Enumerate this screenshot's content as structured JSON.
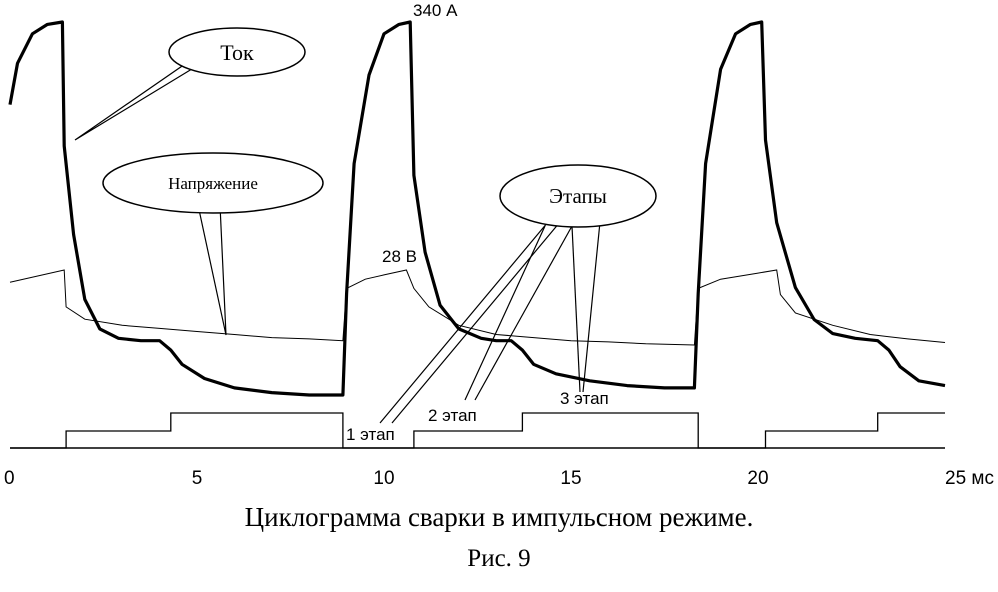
{
  "chart_data": {
    "type": "line",
    "xlabel_unit": "мс",
    "xlim": [
      0,
      25
    ],
    "x_ticks": [
      0,
      5,
      10,
      15,
      20,
      25
    ],
    "x_tick_labels": [
      "0",
      "5",
      "10",
      "15",
      "20",
      "25 мс"
    ],
    "grid": false,
    "series": [
      {
        "name": "Ток",
        "x": [
          0,
          0.2,
          0.6,
          1.0,
          1.4,
          1.45,
          1.7,
          2.0,
          2.4,
          2.9,
          3.5,
          4.0,
          4.3,
          4.6,
          5.2,
          6.0,
          7.0,
          8.0,
          8.9,
          9.0,
          9.2,
          9.6,
          10.0,
          10.4,
          10.7,
          10.8,
          11.1,
          11.5,
          12.0,
          12.6,
          13.0,
          13.4,
          13.7,
          14.0,
          14.6,
          15.5,
          16.5,
          17.5,
          18.3,
          18.4,
          18.6,
          19.0,
          19.4,
          19.8,
          20.1,
          20.2,
          20.5,
          21.0,
          21.5,
          22.0,
          22.6,
          23.2,
          23.5,
          23.8,
          24.3,
          25.0
        ],
        "values": [
          270,
          305,
          330,
          338,
          340,
          235,
          160,
          105,
          80,
          72,
          70,
          70,
          62,
          50,
          38,
          30,
          26,
          24,
          24,
          110,
          220,
          295,
          330,
          338,
          340,
          210,
          145,
          100,
          80,
          72,
          70,
          70,
          62,
          50,
          42,
          36,
          32,
          30,
          30,
          110,
          220,
          300,
          330,
          338,
          340,
          240,
          170,
          115,
          88,
          76,
          72,
          70,
          62,
          48,
          36,
          32
        ]
      },
      {
        "name": "Напряжение",
        "x": [
          0,
          1.45,
          1.5,
          2.0,
          3.0,
          4.0,
          5.0,
          6.0,
          7.0,
          8.0,
          8.9,
          9.0,
          9.5,
          10.0,
          10.6,
          10.8,
          11.2,
          12.0,
          13.0,
          14.0,
          15.0,
          16.0,
          17.0,
          18.3,
          18.4,
          19.0,
          20.0,
          20.5,
          20.6,
          21.0,
          22.0,
          23.0,
          24.0,
          25.0
        ],
        "values": [
          26,
          28,
          22,
          20,
          19,
          18.5,
          18,
          17.5,
          17,
          16.8,
          16.5,
          25,
          26.5,
          27.2,
          28,
          25,
          22,
          19,
          17.5,
          17,
          16.5,
          16.3,
          16,
          15.8,
          25,
          26.5,
          27.5,
          28,
          24,
          21,
          19,
          17.5,
          16.8,
          16.2
        ]
      },
      {
        "name": "Этапы",
        "x": [
          0,
          1.5,
          1.5,
          4.3,
          4.3,
          8.9,
          8.9,
          10.8,
          10.8,
          13.7,
          13.7,
          18.4,
          18.4,
          20.2,
          20.2,
          23.2,
          23.2,
          25.0
        ],
        "values": [
          0,
          0,
          1,
          1,
          2,
          2,
          0,
          0,
          1,
          1,
          2,
          2,
          0,
          0,
          1,
          1,
          2,
          2
        ]
      }
    ],
    "annotations": {
      "peak_current": "340 А",
      "peak_voltage": "28 В",
      "bubble_current": "Ток",
      "bubble_voltage": "Напряжение",
      "bubble_stages": "Этапы",
      "stage_1": "1 этап",
      "stage_2": "2 этап",
      "stage_3": "3 этап"
    }
  },
  "caption": "Циклограмма сварки в импульсном режиме.",
  "figure_label": "Рис. 9"
}
